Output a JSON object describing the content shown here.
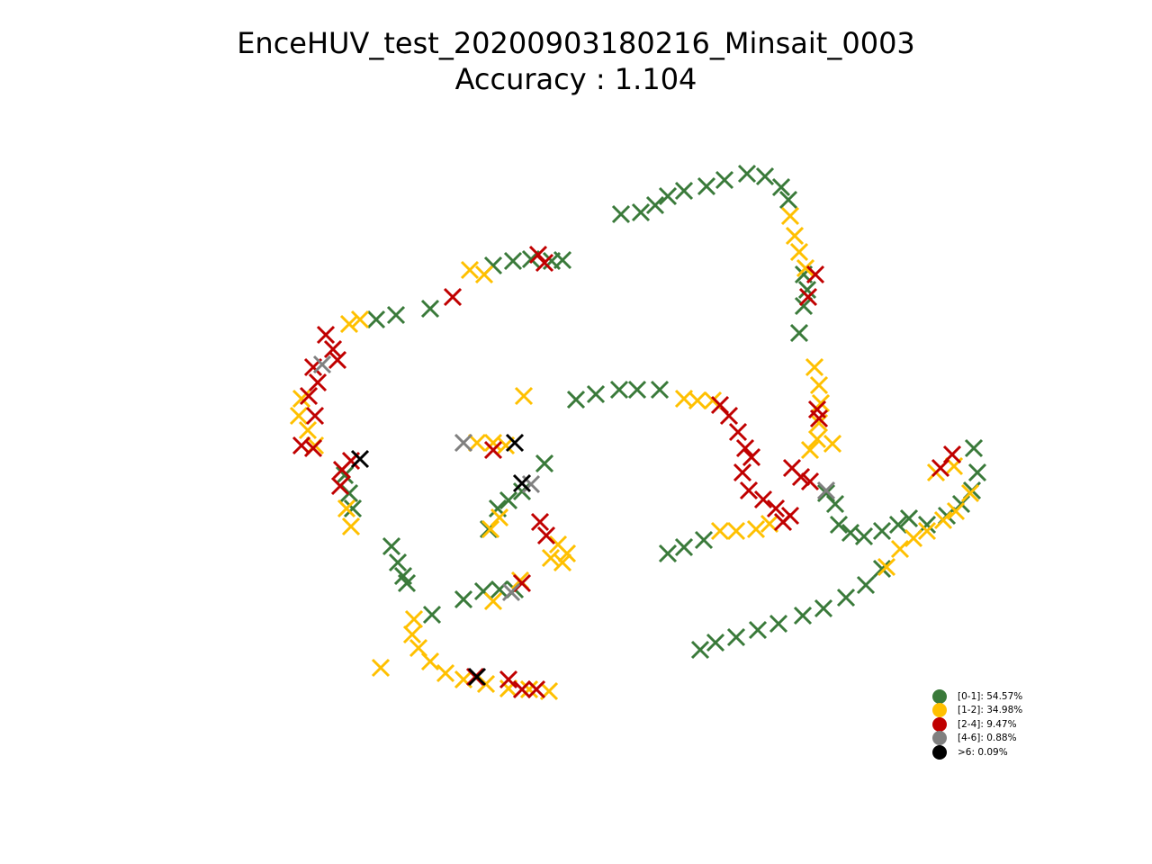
{
  "chart_data": {
    "type": "scatter",
    "title": "EnceHUV_test_20200903180216_Minsait_0003",
    "subtitle": "Accuracy : 1.104",
    "axes_visible": false,
    "grid": false,
    "legend_position": "bottom-right",
    "marker": "x",
    "legend": [
      {
        "label": "[0-1]: 54.57%",
        "color": "#3a7a3a"
      },
      {
        "label": "[1-2]: 34.98%",
        "color": "#ffc000"
      },
      {
        "label": "[2-4]: 9.47%",
        "color": "#c00000"
      },
      {
        "label": "[4-6]: 0.88%",
        "color": "#808080"
      },
      {
        "label": ">6: 0.09%",
        "color": "#000000"
      }
    ],
    "series": [
      {
        "color": "#3a7a3a",
        "points": [
          [
            690,
            238
          ],
          [
            712,
            236
          ],
          [
            728,
            228
          ],
          [
            742,
            218
          ],
          [
            760,
            212
          ],
          [
            785,
            207
          ],
          [
            805,
            200
          ],
          [
            830,
            193
          ],
          [
            850,
            196
          ],
          [
            868,
            208
          ],
          [
            876,
            222
          ],
          [
            893,
            305
          ],
          [
            897,
            322
          ],
          [
            893,
            340
          ],
          [
            888,
            370
          ],
          [
            548,
            295
          ],
          [
            570,
            290
          ],
          [
            590,
            288
          ],
          [
            613,
            290
          ],
          [
            625,
            289
          ],
          [
            418,
            355
          ],
          [
            440,
            350
          ],
          [
            478,
            343
          ],
          [
            640,
            444
          ],
          [
            662,
            438
          ],
          [
            688,
            433
          ],
          [
            708,
            433
          ],
          [
            733,
            433
          ],
          [
            605,
            515
          ],
          [
            580,
            546
          ],
          [
            565,
            556
          ],
          [
            553,
            565
          ],
          [
            543,
            588
          ],
          [
            435,
            607
          ],
          [
            442,
            625
          ],
          [
            448,
            640
          ],
          [
            452,
            648
          ],
          [
            515,
            666
          ],
          [
            537,
            657
          ],
          [
            555,
            655
          ],
          [
            572,
            655
          ],
          [
            742,
            615
          ],
          [
            760,
            608
          ],
          [
            782,
            600
          ],
          [
            918,
            548
          ],
          [
            928,
            560
          ],
          [
            932,
            583
          ],
          [
            945,
            592
          ],
          [
            960,
            596
          ],
          [
            980,
            590
          ],
          [
            998,
            583
          ],
          [
            1010,
            576
          ],
          [
            1030,
            583
          ],
          [
            1052,
            573
          ],
          [
            1068,
            560
          ],
          [
            1080,
            545
          ],
          [
            1086,
            525
          ],
          [
            1082,
            498
          ],
          [
            980,
            632
          ],
          [
            962,
            650
          ],
          [
            940,
            664
          ],
          [
            915,
            676
          ],
          [
            892,
            684
          ],
          [
            865,
            693
          ],
          [
            842,
            700
          ],
          [
            818,
            708
          ],
          [
            795,
            714
          ],
          [
            778,
            722
          ],
          [
            392,
            565
          ],
          [
            388,
            548
          ],
          [
            383,
            528
          ],
          [
            480,
            683
          ]
        ]
      },
      {
        "color": "#ffc000",
        "points": [
          [
            522,
            300
          ],
          [
            538,
            305
          ],
          [
            878,
            240
          ],
          [
            883,
            262
          ],
          [
            888,
            280
          ],
          [
            895,
            298
          ],
          [
            388,
            360
          ],
          [
            400,
            355
          ],
          [
            335,
            443
          ],
          [
            332,
            462
          ],
          [
            342,
            478
          ],
          [
            350,
            495
          ],
          [
            905,
            408
          ],
          [
            910,
            428
          ],
          [
            912,
            448
          ],
          [
            910,
            470
          ],
          [
            908,
            488
          ],
          [
            900,
            500
          ],
          [
            760,
            443
          ],
          [
            775,
            445
          ],
          [
            792,
            445
          ],
          [
            530,
            492
          ],
          [
            548,
            492
          ],
          [
            562,
            495
          ],
          [
            582,
            440
          ],
          [
            620,
            605
          ],
          [
            630,
            615
          ],
          [
            625,
            625
          ],
          [
            612,
            620
          ],
          [
            555,
            575
          ],
          [
            545,
            588
          ],
          [
            800,
            590
          ],
          [
            818,
            590
          ],
          [
            840,
            588
          ],
          [
            855,
            582
          ],
          [
            1000,
            610
          ],
          [
            1015,
            598
          ],
          [
            1030,
            590
          ],
          [
            1048,
            578
          ],
          [
            1062,
            568
          ],
          [
            1078,
            548
          ],
          [
            1060,
            518
          ],
          [
            1040,
            525
          ],
          [
            985,
            630
          ],
          [
            578,
            645
          ],
          [
            548,
            668
          ],
          [
            460,
            688
          ],
          [
            458,
            705
          ],
          [
            465,
            720
          ],
          [
            478,
            735
          ],
          [
            495,
            748
          ],
          [
            515,
            755
          ],
          [
            540,
            760
          ],
          [
            565,
            765
          ],
          [
            588,
            766
          ],
          [
            610,
            768
          ],
          [
            385,
            565
          ],
          [
            390,
            585
          ],
          [
            423,
            742
          ],
          [
            925,
            493
          ]
        ]
      },
      {
        "color": "#c00000",
        "points": [
          [
            362,
            372
          ],
          [
            370,
            388
          ],
          [
            375,
            400
          ],
          [
            348,
            408
          ],
          [
            353,
            425
          ],
          [
            343,
            440
          ],
          [
            350,
            462
          ],
          [
            335,
            495
          ],
          [
            348,
            498
          ],
          [
            390,
            512
          ],
          [
            380,
            522
          ],
          [
            378,
            540
          ],
          [
            598,
            283
          ],
          [
            605,
            292
          ],
          [
            503,
            330
          ],
          [
            800,
            450
          ],
          [
            810,
            462
          ],
          [
            820,
            480
          ],
          [
            828,
            498
          ],
          [
            835,
            508
          ],
          [
            825,
            525
          ],
          [
            832,
            545
          ],
          [
            848,
            555
          ],
          [
            862,
            565
          ],
          [
            878,
            573
          ],
          [
            870,
            580
          ],
          [
            880,
            520
          ],
          [
            890,
            530
          ],
          [
            900,
            535
          ],
          [
            908,
            455
          ],
          [
            910,
            465
          ],
          [
            906,
            305
          ],
          [
            898,
            330
          ],
          [
            600,
            580
          ],
          [
            607,
            595
          ],
          [
            580,
            648
          ],
          [
            565,
            755
          ],
          [
            580,
            766
          ],
          [
            596,
            766
          ],
          [
            548,
            500
          ],
          [
            1045,
            520
          ],
          [
            1058,
            505
          ],
          [
            528,
            752
          ]
        ]
      },
      {
        "color": "#808080",
        "points": [
          [
            358,
            405
          ],
          [
            515,
            492
          ],
          [
            590,
            538
          ],
          [
            918,
            545
          ],
          [
            568,
            658
          ]
        ]
      },
      {
        "color": "#000000",
        "points": [
          [
            400,
            510
          ],
          [
            572,
            492
          ],
          [
            580,
            537
          ],
          [
            530,
            752
          ]
        ]
      }
    ]
  }
}
